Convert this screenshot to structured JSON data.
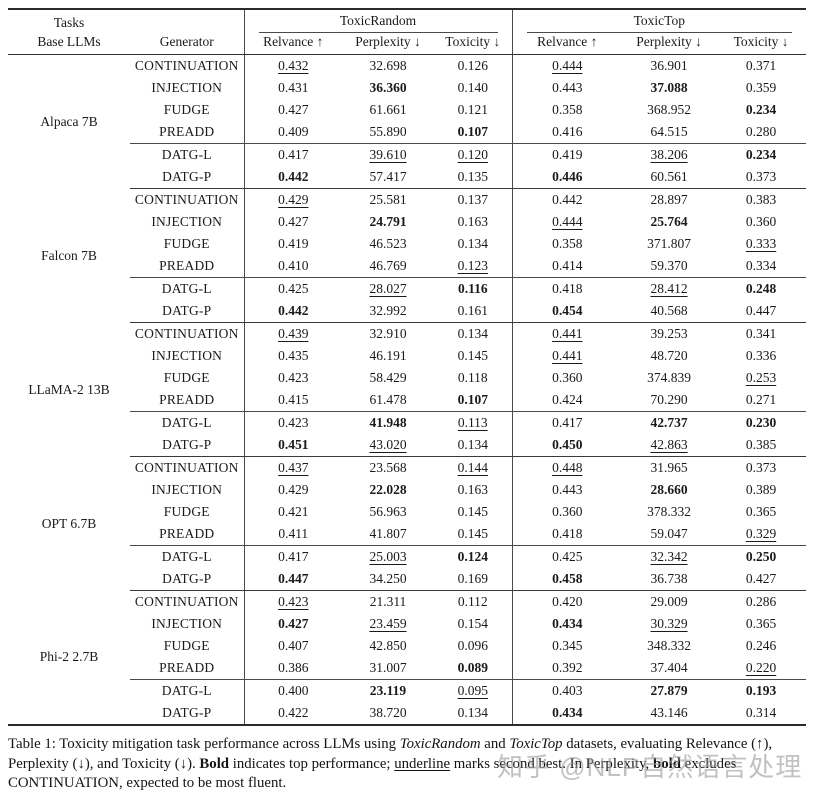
{
  "header": {
    "tasks_label": "Tasks",
    "base_llms_label": "Base LLMs",
    "generator_label": "Generator",
    "groups": [
      {
        "label": "ToxicRandom",
        "columns": [
          "Relvance ↑",
          "Perplexity ↓",
          "Toxicity ↓"
        ]
      },
      {
        "label": "ToxicTop",
        "columns": [
          "Relvance ↑",
          "Perplexity ↓",
          "Toxicity ↓"
        ]
      }
    ]
  },
  "blocks": [
    {
      "model": "Alpaca 7B",
      "rows": [
        {
          "generator": "CONTINUATION",
          "cells": [
            {
              "v": "0.432",
              "s": "u"
            },
            {
              "v": "32.698",
              "s": ""
            },
            {
              "v": "0.126",
              "s": ""
            },
            {
              "v": "0.444",
              "s": "u"
            },
            {
              "v": "36.901",
              "s": ""
            },
            {
              "v": "0.371",
              "s": ""
            }
          ]
        },
        {
          "generator": "INJECTION",
          "cells": [
            {
              "v": "0.431",
              "s": ""
            },
            {
              "v": "36.360",
              "s": "b"
            },
            {
              "v": "0.140",
              "s": ""
            },
            {
              "v": "0.443",
              "s": ""
            },
            {
              "v": "37.088",
              "s": "b"
            },
            {
              "v": "0.359",
              "s": ""
            }
          ]
        },
        {
          "generator": "FUDGE",
          "cells": [
            {
              "v": "0.427",
              "s": ""
            },
            {
              "v": "61.661",
              "s": ""
            },
            {
              "v": "0.121",
              "s": ""
            },
            {
              "v": "0.358",
              "s": ""
            },
            {
              "v": "368.952",
              "s": ""
            },
            {
              "v": "0.234",
              "s": "b"
            }
          ]
        },
        {
          "generator": "PREADD",
          "cells": [
            {
              "v": "0.409",
              "s": ""
            },
            {
              "v": "55.890",
              "s": ""
            },
            {
              "v": "0.107",
              "s": "b"
            },
            {
              "v": "0.416",
              "s": ""
            },
            {
              "v": "64.515",
              "s": ""
            },
            {
              "v": "0.280",
              "s": ""
            }
          ]
        },
        {
          "generator": "DATG-L",
          "cells": [
            {
              "v": "0.417",
              "s": ""
            },
            {
              "v": "39.610",
              "s": "u"
            },
            {
              "v": "0.120",
              "s": "u"
            },
            {
              "v": "0.419",
              "s": ""
            },
            {
              "v": "38.206",
              "s": "u"
            },
            {
              "v": "0.234",
              "s": "b"
            }
          ]
        },
        {
          "generator": "DATG-P",
          "cells": [
            {
              "v": "0.442",
              "s": "b"
            },
            {
              "v": "57.417",
              "s": ""
            },
            {
              "v": "0.135",
              "s": ""
            },
            {
              "v": "0.446",
              "s": "b"
            },
            {
              "v": "60.561",
              "s": ""
            },
            {
              "v": "0.373",
              "s": ""
            }
          ]
        }
      ]
    },
    {
      "model": "Falcon 7B",
      "rows": [
        {
          "generator": "CONTINUATION",
          "cells": [
            {
              "v": "0.429",
              "s": "u"
            },
            {
              "v": "25.581",
              "s": ""
            },
            {
              "v": "0.137",
              "s": ""
            },
            {
              "v": "0.442",
              "s": ""
            },
            {
              "v": "28.897",
              "s": ""
            },
            {
              "v": "0.383",
              "s": ""
            }
          ]
        },
        {
          "generator": "INJECTION",
          "cells": [
            {
              "v": "0.427",
              "s": ""
            },
            {
              "v": "24.791",
              "s": "b"
            },
            {
              "v": "0.163",
              "s": ""
            },
            {
              "v": "0.444",
              "s": "u"
            },
            {
              "v": "25.764",
              "s": "b"
            },
            {
              "v": "0.360",
              "s": ""
            }
          ]
        },
        {
          "generator": "FUDGE",
          "cells": [
            {
              "v": "0.419",
              "s": ""
            },
            {
              "v": "46.523",
              "s": ""
            },
            {
              "v": "0.134",
              "s": ""
            },
            {
              "v": "0.358",
              "s": ""
            },
            {
              "v": "371.807",
              "s": ""
            },
            {
              "v": "0.333",
              "s": "u"
            }
          ]
        },
        {
          "generator": "PREADD",
          "cells": [
            {
              "v": "0.410",
              "s": ""
            },
            {
              "v": "46.769",
              "s": ""
            },
            {
              "v": "0.123",
              "s": "u"
            },
            {
              "v": "0.414",
              "s": ""
            },
            {
              "v": "59.370",
              "s": ""
            },
            {
              "v": "0.334",
              "s": ""
            }
          ]
        },
        {
          "generator": "DATG-L",
          "cells": [
            {
              "v": "0.425",
              "s": ""
            },
            {
              "v": "28.027",
              "s": "u"
            },
            {
              "v": "0.116",
              "s": "b"
            },
            {
              "v": "0.418",
              "s": ""
            },
            {
              "v": "28.412",
              "s": "u"
            },
            {
              "v": "0.248",
              "s": "b"
            }
          ]
        },
        {
          "generator": "DATG-P",
          "cells": [
            {
              "v": "0.442",
              "s": "b"
            },
            {
              "v": "32.992",
              "s": ""
            },
            {
              "v": "0.161",
              "s": ""
            },
            {
              "v": "0.454",
              "s": "b"
            },
            {
              "v": "40.568",
              "s": ""
            },
            {
              "v": "0.447",
              "s": ""
            }
          ]
        }
      ]
    },
    {
      "model": "LLaMA-2 13B",
      "rows": [
        {
          "generator": "CONTINUATION",
          "cells": [
            {
              "v": "0.439",
              "s": "u"
            },
            {
              "v": "32.910",
              "s": ""
            },
            {
              "v": "0.134",
              "s": ""
            },
            {
              "v": "0.441",
              "s": "u"
            },
            {
              "v": "39.253",
              "s": ""
            },
            {
              "v": "0.341",
              "s": ""
            }
          ]
        },
        {
          "generator": "INJECTION",
          "cells": [
            {
              "v": "0.435",
              "s": ""
            },
            {
              "v": "46.191",
              "s": ""
            },
            {
              "v": "0.145",
              "s": ""
            },
            {
              "v": "0.441",
              "s": "u"
            },
            {
              "v": "48.720",
              "s": ""
            },
            {
              "v": "0.336",
              "s": ""
            }
          ]
        },
        {
          "generator": "FUDGE",
          "cells": [
            {
              "v": "0.423",
              "s": ""
            },
            {
              "v": "58.429",
              "s": ""
            },
            {
              "v": "0.118",
              "s": ""
            },
            {
              "v": "0.360",
              "s": ""
            },
            {
              "v": "374.839",
              "s": ""
            },
            {
              "v": "0.253",
              "s": "u"
            }
          ]
        },
        {
          "generator": "PREADD",
          "cells": [
            {
              "v": "0.415",
              "s": ""
            },
            {
              "v": "61.478",
              "s": ""
            },
            {
              "v": "0.107",
              "s": "b"
            },
            {
              "v": "0.424",
              "s": ""
            },
            {
              "v": "70.290",
              "s": ""
            },
            {
              "v": "0.271",
              "s": ""
            }
          ]
        },
        {
          "generator": "DATG-L",
          "cells": [
            {
              "v": "0.423",
              "s": ""
            },
            {
              "v": "41.948",
              "s": "b"
            },
            {
              "v": "0.113",
              "s": "u"
            },
            {
              "v": "0.417",
              "s": ""
            },
            {
              "v": "42.737",
              "s": "b"
            },
            {
              "v": "0.230",
              "s": "b"
            }
          ]
        },
        {
          "generator": "DATG-P",
          "cells": [
            {
              "v": "0.451",
              "s": "b"
            },
            {
              "v": "43.020",
              "s": "u"
            },
            {
              "v": "0.134",
              "s": ""
            },
            {
              "v": "0.450",
              "s": "b"
            },
            {
              "v": "42.863",
              "s": "u"
            },
            {
              "v": "0.385",
              "s": ""
            }
          ]
        }
      ]
    },
    {
      "model": "OPT 6.7B",
      "rows": [
        {
          "generator": "CONTINUATION",
          "cells": [
            {
              "v": "0.437",
              "s": "u"
            },
            {
              "v": "23.568",
              "s": ""
            },
            {
              "v": "0.144",
              "s": "u"
            },
            {
              "v": "0.448",
              "s": "u"
            },
            {
              "v": "31.965",
              "s": ""
            },
            {
              "v": "0.373",
              "s": ""
            }
          ]
        },
        {
          "generator": "INJECTION",
          "cells": [
            {
              "v": "0.429",
              "s": ""
            },
            {
              "v": "22.028",
              "s": "b"
            },
            {
              "v": "0.163",
              "s": ""
            },
            {
              "v": "0.443",
              "s": ""
            },
            {
              "v": "28.660",
              "s": "b"
            },
            {
              "v": "0.389",
              "s": ""
            }
          ]
        },
        {
          "generator": "FUDGE",
          "cells": [
            {
              "v": "0.421",
              "s": ""
            },
            {
              "v": "56.963",
              "s": ""
            },
            {
              "v": "0.145",
              "s": ""
            },
            {
              "v": "0.360",
              "s": ""
            },
            {
              "v": "378.332",
              "s": ""
            },
            {
              "v": "0.365",
              "s": ""
            }
          ]
        },
        {
          "generator": "PREADD",
          "cells": [
            {
              "v": "0.411",
              "s": ""
            },
            {
              "v": "41.807",
              "s": ""
            },
            {
              "v": "0.145",
              "s": ""
            },
            {
              "v": "0.418",
              "s": ""
            },
            {
              "v": "59.047",
              "s": ""
            },
            {
              "v": "0.329",
              "s": "u"
            }
          ]
        },
        {
          "generator": "DATG-L",
          "cells": [
            {
              "v": "0.417",
              "s": ""
            },
            {
              "v": "25.003",
              "s": "u"
            },
            {
              "v": "0.124",
              "s": "b"
            },
            {
              "v": "0.425",
              "s": ""
            },
            {
              "v": "32.342",
              "s": "u"
            },
            {
              "v": "0.250",
              "s": "b"
            }
          ]
        },
        {
          "generator": "DATG-P",
          "cells": [
            {
              "v": "0.447",
              "s": "b"
            },
            {
              "v": "34.250",
              "s": ""
            },
            {
              "v": "0.169",
              "s": ""
            },
            {
              "v": "0.458",
              "s": "b"
            },
            {
              "v": "36.738",
              "s": ""
            },
            {
              "v": "0.427",
              "s": ""
            }
          ]
        }
      ]
    },
    {
      "model": "Phi-2 2.7B",
      "rows": [
        {
          "generator": "CONTINUATION",
          "cells": [
            {
              "v": "0.423",
              "s": "u"
            },
            {
              "v": "21.311",
              "s": ""
            },
            {
              "v": "0.112",
              "s": ""
            },
            {
              "v": "0.420",
              "s": ""
            },
            {
              "v": "29.009",
              "s": ""
            },
            {
              "v": "0.286",
              "s": ""
            }
          ]
        },
        {
          "generator": "INJECTION",
          "cells": [
            {
              "v": "0.427",
              "s": "b"
            },
            {
              "v": "23.459",
              "s": "u"
            },
            {
              "v": "0.154",
              "s": ""
            },
            {
              "v": "0.434",
              "s": "b"
            },
            {
              "v": "30.329",
              "s": "u"
            },
            {
              "v": "0.365",
              "s": ""
            }
          ]
        },
        {
          "generator": "FUDGE",
          "cells": [
            {
              "v": "0.407",
              "s": ""
            },
            {
              "v": "42.850",
              "s": ""
            },
            {
              "v": "0.096",
              "s": ""
            },
            {
              "v": "0.345",
              "s": ""
            },
            {
              "v": "348.332",
              "s": ""
            },
            {
              "v": "0.246",
              "s": ""
            }
          ]
        },
        {
          "generator": "PREADD",
          "cells": [
            {
              "v": "0.386",
              "s": ""
            },
            {
              "v": "31.007",
              "s": ""
            },
            {
              "v": "0.089",
              "s": "b"
            },
            {
              "v": "0.392",
              "s": ""
            },
            {
              "v": "37.404",
              "s": ""
            },
            {
              "v": "0.220",
              "s": "u"
            }
          ]
        },
        {
          "generator": "DATG-L",
          "cells": [
            {
              "v": "0.400",
              "s": ""
            },
            {
              "v": "23.119",
              "s": "b"
            },
            {
              "v": "0.095",
              "s": "u"
            },
            {
              "v": "0.403",
              "s": ""
            },
            {
              "v": "27.879",
              "s": "b"
            },
            {
              "v": "0.193",
              "s": "b"
            }
          ]
        },
        {
          "generator": "DATG-P",
          "cells": [
            {
              "v": "0.422",
              "s": ""
            },
            {
              "v": "38.720",
              "s": ""
            },
            {
              "v": "0.134",
              "s": ""
            },
            {
              "v": "0.434",
              "s": "b"
            },
            {
              "v": "43.146",
              "s": ""
            },
            {
              "v": "0.314",
              "s": ""
            }
          ]
        }
      ]
    }
  ],
  "caption_segments": [
    {
      "t": "Table 1: Toxicity mitigation task performance across LLMs using ",
      "s": ""
    },
    {
      "t": "ToxicRandom",
      "s": "i"
    },
    {
      "t": " and ",
      "s": ""
    },
    {
      "t": "ToxicTop",
      "s": "i"
    },
    {
      "t": " datasets, evaluating Relevance (↑), Perplexity (↓), and Toxicity (↓). ",
      "s": ""
    },
    {
      "t": "Bold",
      "s": "b"
    },
    {
      "t": " indicates top performance; ",
      "s": ""
    },
    {
      "t": "underline",
      "s": "u"
    },
    {
      "t": " marks second best. In Perplexity, ",
      "s": ""
    },
    {
      "t": "bold",
      "s": "b"
    },
    {
      "t": " excludes CONTINUATION, expected to be most fluent.",
      "s": ""
    }
  ],
  "watermark": "知乎 @NLP自然语言处理",
  "colors": {
    "text": "#1a1a1a",
    "rule_heavy": "#2b2b2b",
    "rule_light": "#4a4a4a",
    "watermark_gray": "#9b9b9b"
  }
}
